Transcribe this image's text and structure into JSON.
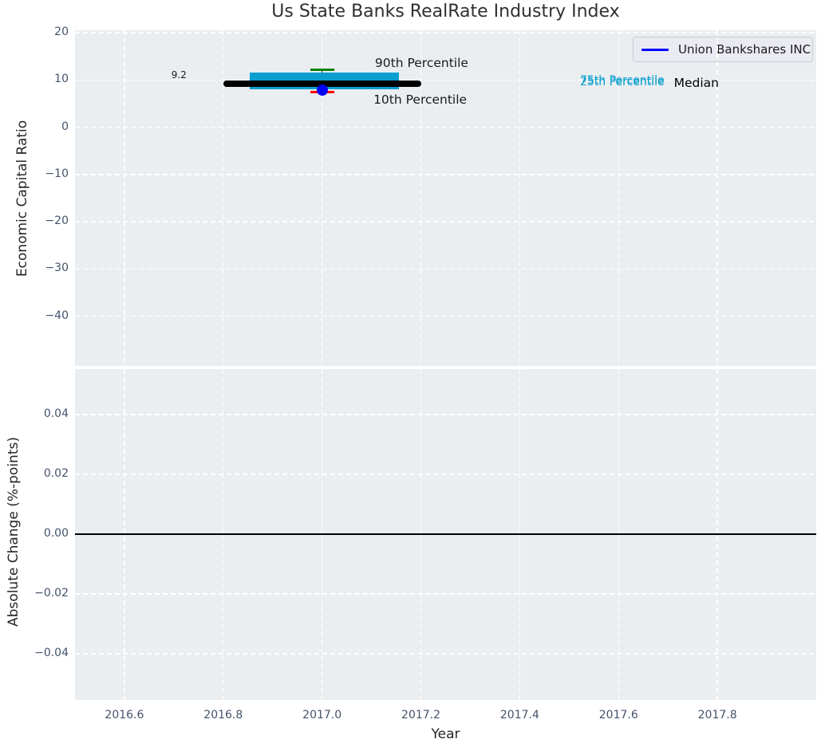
{
  "title": "Us State Banks RealRate Industry Index",
  "xlabel": "Year",
  "legend": {
    "label": "Union Bankshares INC",
    "line_color": "#0000ff",
    "position": "upper right"
  },
  "colors": {
    "plot_bg": "#eaeef1",
    "grid": "#ffffff",
    "box": "#0a9fce",
    "median_line": "#000000",
    "company_marker": "#0000ff",
    "p90_cap": "#008000",
    "p10_cap": "#ff0000",
    "whisker": "#2f2f2f",
    "zero_line": "#000000",
    "tick_label": "#44536b",
    "text": "#1a1a1a"
  },
  "chart_data": [
    {
      "type": "box",
      "name": "economic-capital-ratio",
      "title": "Us State Banks RealRate Industry Index",
      "xlabel": "Year",
      "ylabel": "Economic Capital Ratio",
      "grid": true,
      "legend": [
        "Union Bankshares INC"
      ],
      "legend_position": "upper right",
      "xlim": [
        2016.5,
        2018.0
      ],
      "ylim": [
        -50.5,
        20.5
      ],
      "xticks": [
        {
          "v": 2016.6,
          "label": "2016.6"
        },
        {
          "v": 2016.8,
          "label": "2016.8"
        },
        {
          "v": 2017.0,
          "label": "2017.0"
        },
        {
          "v": 2017.2,
          "label": "2017.2"
        },
        {
          "v": 2017.4,
          "label": "2017.4"
        },
        {
          "v": 2017.6,
          "label": "2017.6"
        },
        {
          "v": 2017.8,
          "label": "2017.8"
        }
      ],
      "yticks": [
        {
          "v": 20,
          "label": "20"
        },
        {
          "v": 10,
          "label": "10"
        },
        {
          "v": 0,
          "label": "0"
        },
        {
          "v": -10,
          "label": "−10"
        },
        {
          "v": -20,
          "label": "−20"
        },
        {
          "v": -30,
          "label": "−30"
        },
        {
          "v": -40,
          "label": "−40"
        }
      ],
      "box": {
        "x": 2017.0,
        "x_range": [
          2016.853,
          2017.155
        ],
        "median_x_range": [
          2016.8,
          2017.2
        ],
        "p10": 7.35,
        "p25": 8.0,
        "median": 9.2,
        "p75": 11.5,
        "p90": 12.2,
        "median_label": "9.2"
      },
      "series": [
        {
          "name": "Union Bankshares INC",
          "x": [
            2017.0
          ],
          "y": [
            7.85
          ],
          "color": "#0000ff",
          "marker": "circle"
        }
      ],
      "annotations": [
        {
          "text": "9.2",
          "x": 2016.695,
          "y": 11.1,
          "color": "#1a1a1a",
          "size": 12
        },
        {
          "text": "90th Percentile",
          "x": 2017.107,
          "y": 13.6,
          "color": "#1a1a1a",
          "size": 15.5
        },
        {
          "text": "10th Percentile",
          "x": 2017.104,
          "y": 5.9,
          "color": "#1a1a1a",
          "size": 15.5
        },
        {
          "text": "75th Percentile",
          "x": 2017.522,
          "y": 9.9,
          "color": "#0a9fce",
          "size": 14
        },
        {
          "text": "25th Percentile",
          "x": 2017.522,
          "y": 9.55,
          "color": "#0a9fce",
          "size": 14
        },
        {
          "text": "Median",
          "x": 2017.712,
          "y": 9.4,
          "color": "#000000",
          "size": 15.5
        }
      ]
    },
    {
      "type": "line",
      "name": "absolute-change",
      "xlabel": "Year",
      "ylabel": "Absolute Change (%-points)",
      "grid": true,
      "xlim": [
        2016.5,
        2018.0
      ],
      "ylim": [
        -0.0555,
        0.0552
      ],
      "zero_line": 0.0,
      "xticks": [
        {
          "v": 2016.6,
          "label": "2016.6"
        },
        {
          "v": 2016.8,
          "label": "2016.8"
        },
        {
          "v": 2017.0,
          "label": "2017.0"
        },
        {
          "v": 2017.2,
          "label": "2017.2"
        },
        {
          "v": 2017.4,
          "label": "2017.4"
        },
        {
          "v": 2017.6,
          "label": "2017.6"
        },
        {
          "v": 2017.8,
          "label": "2017.8"
        }
      ],
      "yticks": [
        {
          "v": 0.04,
          "label": "0.04"
        },
        {
          "v": 0.02,
          "label": "0.02"
        },
        {
          "v": 0.0,
          "label": "0.00"
        },
        {
          "v": -0.02,
          "label": "−0.02"
        },
        {
          "v": -0.04,
          "label": "−0.04"
        }
      ]
    }
  ]
}
